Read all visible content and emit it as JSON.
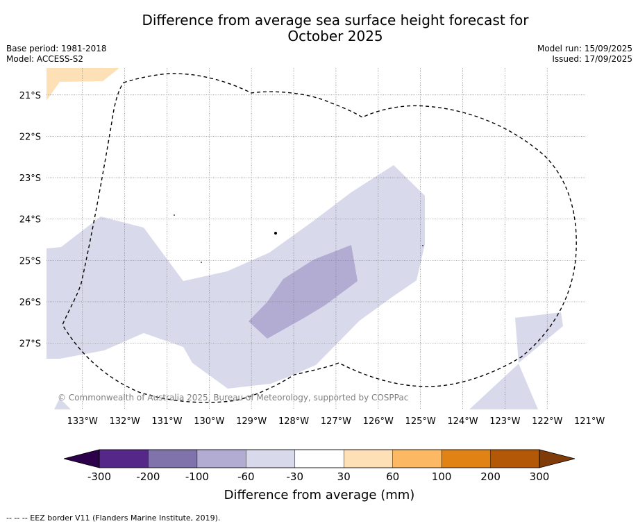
{
  "title_line1": "Difference from average sea surface height forecast for",
  "title_line2": "October 2025",
  "base_period": "Base period: 1981-2018",
  "model": "Model: ACCESS-S2",
  "model_run": "Model run: 15/09/2025",
  "issued": "Issued: 17/09/2025",
  "copyright": "© Commonwealth of Australia 2025, Bureau of Meteorology, supported by COSPPac",
  "map": {
    "lon_range": [
      -133.85,
      -121.1
    ],
    "lat_range": [
      -28.6,
      -20.35
    ],
    "lat_labels": [
      {
        "lat": -21,
        "label": "21°S"
      },
      {
        "lat": -22,
        "label": "22°S"
      },
      {
        "lat": -23,
        "label": "23°S"
      },
      {
        "lat": -24,
        "label": "24°S"
      },
      {
        "lat": -25,
        "label": "25°S"
      },
      {
        "lat": -26,
        "label": "26°S"
      },
      {
        "lat": -27,
        "label": "27°S"
      }
    ],
    "lon_labels": [
      {
        "lon": -133,
        "label": "133°W"
      },
      {
        "lon": -132,
        "label": "132°W"
      },
      {
        "lon": -131,
        "label": "131°W"
      },
      {
        "lon": -130,
        "label": "130°W"
      },
      {
        "lon": -129,
        "label": "129°W"
      },
      {
        "lon": -128,
        "label": "128°W"
      },
      {
        "lon": -127,
        "label": "127°W"
      },
      {
        "lon": -126,
        "label": "126°W"
      },
      {
        "lon": -125,
        "label": "125°W"
      },
      {
        "lon": -124,
        "label": "124°W"
      },
      {
        "lon": -123,
        "label": "123°W"
      },
      {
        "lon": -122,
        "label": "122°W"
      },
      {
        "lon": -121,
        "label": "121°W"
      }
    ],
    "regions": [
      {
        "name": "category-30-to-60",
        "color": "#fee0b6"
      },
      {
        "name": "category-minus-60-to-minus-30",
        "color": "#d8daeb"
      },
      {
        "name": "category-minus-100-to-minus-60",
        "color": "#b2abd2"
      }
    ],
    "eez_border": "dashed",
    "islands": "small black dots"
  },
  "colorbar": {
    "title": "Difference from average (mm)",
    "tick_labels": [
      "-300",
      "-200",
      "-100",
      "-60",
      "-30",
      "30",
      "60",
      "100",
      "200",
      "300"
    ],
    "colors": [
      "#542788",
      "#8073ac",
      "#b2abd2",
      "#d8daeb",
      "#ffffff",
      "#fee0b6",
      "#fdb863",
      "#e08214",
      "#b35806"
    ],
    "under_color": "#2d004b",
    "over_color": "#7f3b08"
  },
  "footnote": "--  --  -- EEZ border V11 (Flanders Marine Institute, 2019)."
}
